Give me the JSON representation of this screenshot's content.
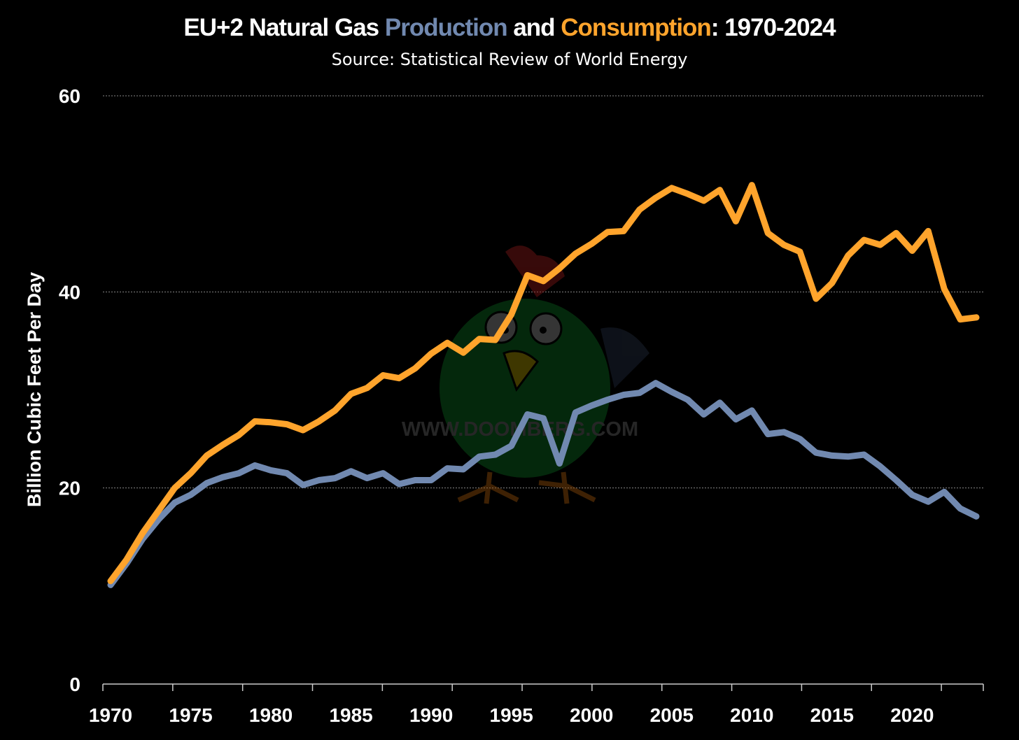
{
  "title": {
    "prefix": "EU+2 Natural Gas ",
    "production": "Production",
    "middle": " and ",
    "consumption": "Consumption",
    "suffix": ": 1970-2024"
  },
  "subtitle": "Source: Statistical Review of World Energy",
  "watermark": "WWW.DOOMBERG.COM",
  "colors": {
    "production": "#7189b0",
    "consumption": "#ffa42c",
    "grid": "#888888"
  },
  "chart_data": {
    "type": "line",
    "title": "EU+2 Natural Gas Production and Consumption: 1970-2024",
    "subtitle": "Source: Statistical Review of World Energy",
    "xlabel": "",
    "ylabel": "Billion Cubic Feet Per Day",
    "ylim": [
      0,
      60
    ],
    "yticks": [
      0,
      20,
      40,
      60
    ],
    "xticks": [
      1970,
      1975,
      1980,
      1985,
      1990,
      1995,
      2000,
      2005,
      2010,
      2015,
      2020
    ],
    "grid": true,
    "x_start": 1970,
    "x_end": 2024,
    "series": [
      {
        "name": "Consumption",
        "color": "#ffa42c",
        "values": [
          10.5,
          12.7,
          15.4,
          17.7,
          20.0,
          21.5,
          23.3,
          24.4,
          25.4,
          26.8,
          26.7,
          26.5,
          25.9,
          26.8,
          27.9,
          29.6,
          30.2,
          31.5,
          31.2,
          32.2,
          33.7,
          34.8,
          33.8,
          35.2,
          35.1,
          37.7,
          41.7,
          41.1,
          42.4,
          43.9,
          44.9,
          46.1,
          46.2,
          48.4,
          49.6,
          50.6,
          50.0,
          49.3,
          50.4,
          47.2,
          50.9,
          46.0,
          44.8,
          44.1,
          39.3,
          40.9,
          43.7,
          45.3,
          44.8,
          46.0,
          44.2,
          46.2,
          40.3,
          37.2,
          37.4
        ]
      },
      {
        "name": "Production",
        "color": "#7189b0",
        "values": [
          10.1,
          12.3,
          14.8,
          16.8,
          18.5,
          19.3,
          20.5,
          21.1,
          21.5,
          22.3,
          21.8,
          21.5,
          20.3,
          20.8,
          21.0,
          21.7,
          21.0,
          21.5,
          20.4,
          20.8,
          20.8,
          22.0,
          21.9,
          23.2,
          23.4,
          24.3,
          27.5,
          27.1,
          22.5,
          27.7,
          28.4,
          29.0,
          29.5,
          29.7,
          30.7,
          29.8,
          29.0,
          27.5,
          28.7,
          27.0,
          27.9,
          25.5,
          25.7,
          25.0,
          23.6,
          23.3,
          23.2,
          23.4,
          22.2,
          20.8,
          19.3,
          18.6,
          19.6,
          17.9,
          17.1
        ]
      }
    ]
  }
}
